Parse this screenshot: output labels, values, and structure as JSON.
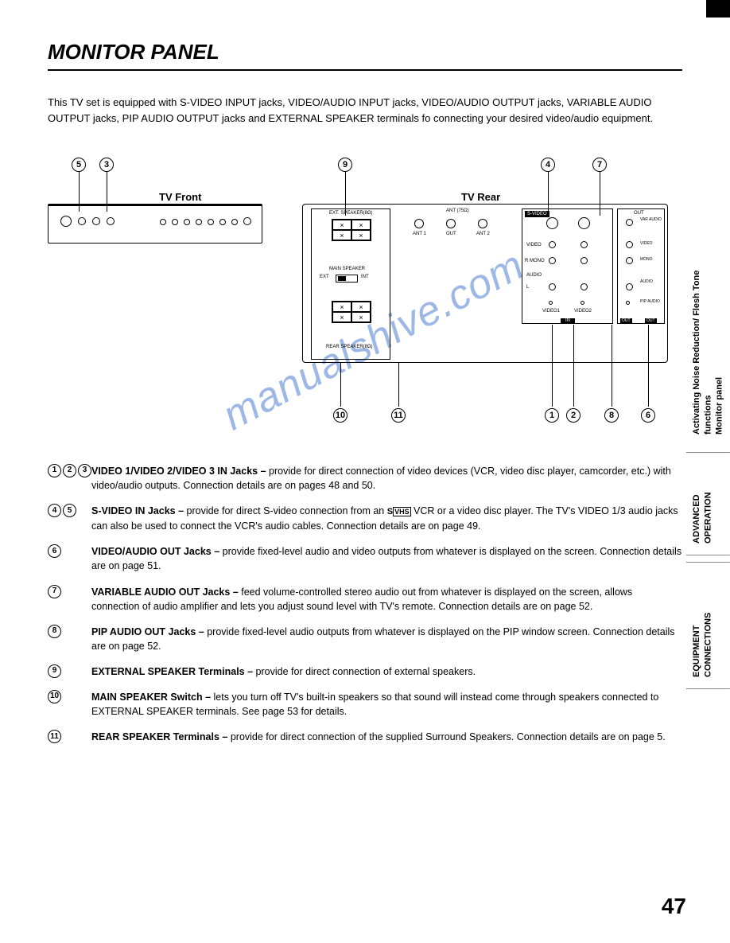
{
  "title": "MONITOR PANEL",
  "intro": "This TV set is equipped with S-VIDEO INPUT jacks, VIDEO/AUDIO INPUT jacks, VIDEO/AUDIO OUTPUT jacks, VARIABLE AUDIO OUTPUT jacks, PIP AUDIO OUTPUT jacks and EXTERNAL SPEAKER terminals fo connecting your desired video/audio equipment.",
  "frontLabel": "TV Front",
  "rearLabel": "TV Rear",
  "callouts": {
    "c1": "1",
    "c2": "2",
    "c3": "3",
    "c4": "4",
    "c5": "5",
    "c6": "6",
    "c7": "7",
    "c8": "8",
    "c9": "9",
    "c10": "10",
    "c11": "11"
  },
  "rearLabels": {
    "extSpeaker": "EXT. SPEAKER(8Ω)",
    "mainSpeaker": "MAIN SPEAKER",
    "ext": "EXT",
    "int": "INT",
    "rearSpeaker": "REAR SPEAKER(8Ω)",
    "ant": "ANT (75Ω)",
    "ant1": "ANT 1",
    "out": "OUT",
    "ant2": "ANT 2",
    "svideo": "S-VIDEO",
    "video": "VIDEO",
    "mono": "MONO",
    "audio": "AUDIO",
    "video1": "VIDEO1",
    "video2": "VIDEO2",
    "in": "IN",
    "varAudio": "VAR AUDIO",
    "pipAudio": "PIP AUDIO",
    "r": "R",
    "l": "L"
  },
  "items": [
    {
      "nums": [
        "1",
        "2",
        "3"
      ],
      "bold": "VIDEO 1/VIDEO 2/VIDEO 3 IN Jacks –",
      "text": " provide for direct connection of video devices (VCR, video disc player, camcorder, etc.) with video/audio outputs. Connection details are on pages 48 and 50."
    },
    {
      "nums": [
        "4",
        "5"
      ],
      "bold": "S-VIDEO IN Jacks –",
      "text": " provide for direct S-video connection from an SVHS VCR or a video disc player.  The TV's VIDEO 1/3 audio jacks can also be used to connect the VCR's audio cables. Connection details are on page 49."
    },
    {
      "nums": [
        "6"
      ],
      "bold": "VIDEO/AUDIO OUT Jacks –",
      "text": " provide fixed-level audio and video outputs from whatever is displayed on the screen. Connection details are on page 51."
    },
    {
      "nums": [
        "7"
      ],
      "bold": "VARIABLE AUDIO OUT Jacks –",
      "text": " feed volume-controlled stereo audio out from whatever is displayed on the screen, allows connection of audio amplifier and lets you adjust sound level with TV's remote. Connection details are on page 52."
    },
    {
      "nums": [
        "8"
      ],
      "bold": "PIP AUDIO OUT Jacks –",
      "text": " provide fixed-level audio outputs from whatever is displayed on the PIP window screen. Connection details are on page 52."
    },
    {
      "nums": [
        "9"
      ],
      "bold": "EXTERNAL SPEAKER Terminals –",
      "text": " provide for direct connection of external speakers."
    },
    {
      "nums": [
        "10"
      ],
      "bold": "MAIN SPEAKER Switch –",
      "text": " lets you turn off TV's built-in speakers so that sound will instead come through speakers connected to EXTERNAL SPEAKER terminals. See page 53 for details."
    },
    {
      "nums": [
        "11"
      ],
      "bold": "REAR SPEAKER Terminals –",
      "text": " provide for direct connection of the supplied Surround Speakers. Connection details are on page 5."
    }
  ],
  "sideTabs": {
    "tab1": "Activating Noise Reduction/ Flesh Tone functions\nMonitor panel",
    "tab2": "ADVANCED\nOPERATION",
    "tab3": "EQUIPMENT\nCONNECTIONS"
  },
  "pageNumber": "47",
  "watermark": "manualshive.com"
}
